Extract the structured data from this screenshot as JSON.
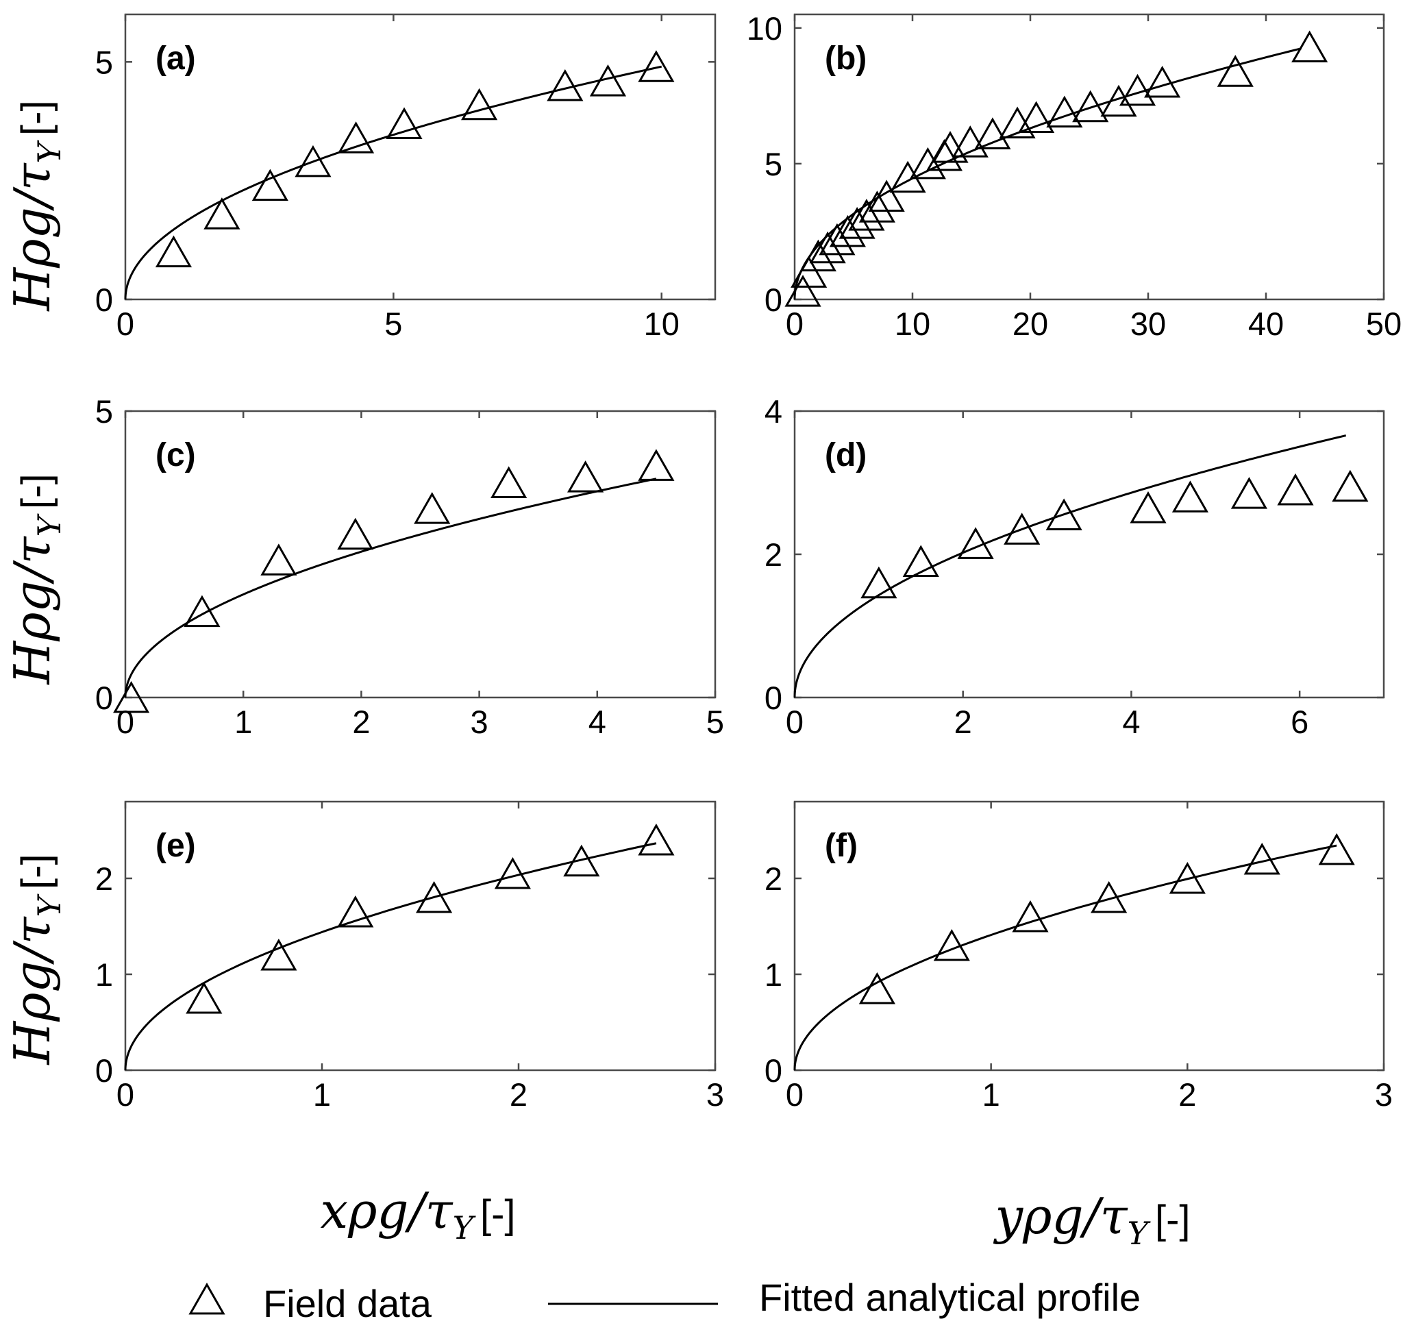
{
  "chart_data": [
    {
      "panel": "(a)",
      "type": "scatter",
      "xlim": [
        0,
        11
      ],
      "ylim": [
        0,
        6
      ],
      "xticks": [
        0,
        5,
        10
      ],
      "yticks": [
        0,
        5
      ],
      "field_data": {
        "x": [
          0.9,
          1.8,
          2.7,
          3.5,
          4.3,
          5.2,
          6.6,
          8.2,
          9.0,
          9.9
        ],
        "y": [
          1.0,
          1.8,
          2.4,
          2.9,
          3.4,
          3.7,
          4.1,
          4.5,
          4.6,
          4.9
        ]
      },
      "fitted_profile": {
        "x_max": 10.0,
        "coefficient": 1.55
      }
    },
    {
      "panel": "(b)",
      "type": "scatter",
      "xlim": [
        0,
        50
      ],
      "ylim": [
        0,
        10.5
      ],
      "xticks": [
        0,
        10,
        20,
        30,
        40,
        50
      ],
      "yticks": [
        0,
        5,
        10
      ],
      "field_data": {
        "x": [
          0.7,
          1.2,
          2.0,
          2.8,
          3.6,
          4.5,
          5.3,
          6.1,
          7.0,
          7.8,
          9.6,
          11.3,
          12.7,
          13.2,
          14.9,
          16.8,
          18.9,
          20.5,
          22.9,
          25.1,
          27.5,
          29.1,
          31.2,
          37.4,
          43.7
        ],
        "y": [
          0.3,
          1.0,
          1.6,
          1.9,
          2.2,
          2.5,
          2.8,
          3.1,
          3.4,
          3.8,
          4.5,
          5.0,
          5.3,
          5.6,
          5.8,
          6.1,
          6.5,
          6.7,
          6.9,
          7.1,
          7.3,
          7.7,
          8.0,
          8.4,
          9.3
        ]
      },
      "fitted_profile": {
        "x_max": 43.0,
        "coefficient": 1.41
      }
    },
    {
      "panel": "(c)",
      "type": "scatter",
      "xlim": [
        0,
        5
      ],
      "ylim": [
        0,
        5
      ],
      "xticks": [
        0,
        1,
        2,
        3,
        4,
        5
      ],
      "yticks": [
        0,
        5
      ],
      "field_data": {
        "x": [
          0.05,
          0.65,
          1.3,
          1.95,
          2.6,
          3.25,
          3.9,
          4.5
        ],
        "y": [
          0.0,
          1.5,
          2.4,
          2.85,
          3.3,
          3.75,
          3.85,
          4.05
        ]
      },
      "fitted_profile": {
        "x_max": 4.5,
        "coefficient": 1.8
      }
    },
    {
      "panel": "(d)",
      "type": "scatter",
      "xlim": [
        0,
        7
      ],
      "ylim": [
        0,
        4
      ],
      "xticks": [
        0,
        2,
        4,
        6
      ],
      "yticks": [
        0,
        2,
        4
      ],
      "field_data": {
        "x": [
          1.0,
          1.5,
          2.15,
          2.7,
          3.2,
          4.2,
          4.7,
          5.4,
          5.95,
          6.6
        ],
        "y": [
          1.6,
          1.9,
          2.15,
          2.35,
          2.55,
          2.65,
          2.8,
          2.85,
          2.9,
          2.95
        ]
      },
      "fitted_profile": {
        "x_max": 6.55,
        "coefficient": 1.43
      }
    },
    {
      "panel": "(e)",
      "type": "scatter",
      "xlim": [
        0,
        3
      ],
      "ylim": [
        0,
        2.8
      ],
      "xticks": [
        0,
        1,
        2,
        3
      ],
      "yticks": [
        0,
        1,
        2
      ],
      "xlabel": "xρg/τY [-]",
      "field_data": {
        "x": [
          0.4,
          0.78,
          1.17,
          1.57,
          1.97,
          2.32,
          2.7
        ],
        "y": [
          0.75,
          1.2,
          1.65,
          1.8,
          2.05,
          2.18,
          2.4
        ]
      },
      "fitted_profile": {
        "x_max": 2.7,
        "coefficient": 1.44
      }
    },
    {
      "panel": "(f)",
      "type": "scatter",
      "xlim": [
        0,
        3
      ],
      "ylim": [
        0,
        2.8
      ],
      "xticks": [
        0,
        1,
        2,
        3
      ],
      "yticks": [
        0,
        1,
        2
      ],
      "xlabel": "yρg/τY [-]",
      "field_data": {
        "x": [
          0.42,
          0.8,
          1.2,
          1.6,
          2.0,
          2.38,
          2.76
        ],
        "y": [
          0.85,
          1.3,
          1.6,
          1.8,
          2.0,
          2.2,
          2.3
        ]
      },
      "fitted_profile": {
        "x_max": 2.76,
        "coefficient": 1.41
      }
    }
  ],
  "axis_labels": {
    "y_math": "Hρg/τ",
    "y_sub": "Y",
    "y_unit": "[-]",
    "x_left_math": "xρg/τ",
    "x_right_math": "yρg/τ",
    "x_sub": "Y",
    "x_unit": "[-]"
  },
  "legend": {
    "marker_label": "Field data",
    "line_label": "Fitted analytical profile"
  },
  "colors": {
    "frame": "#4a4a4a",
    "ink": "#000000"
  }
}
